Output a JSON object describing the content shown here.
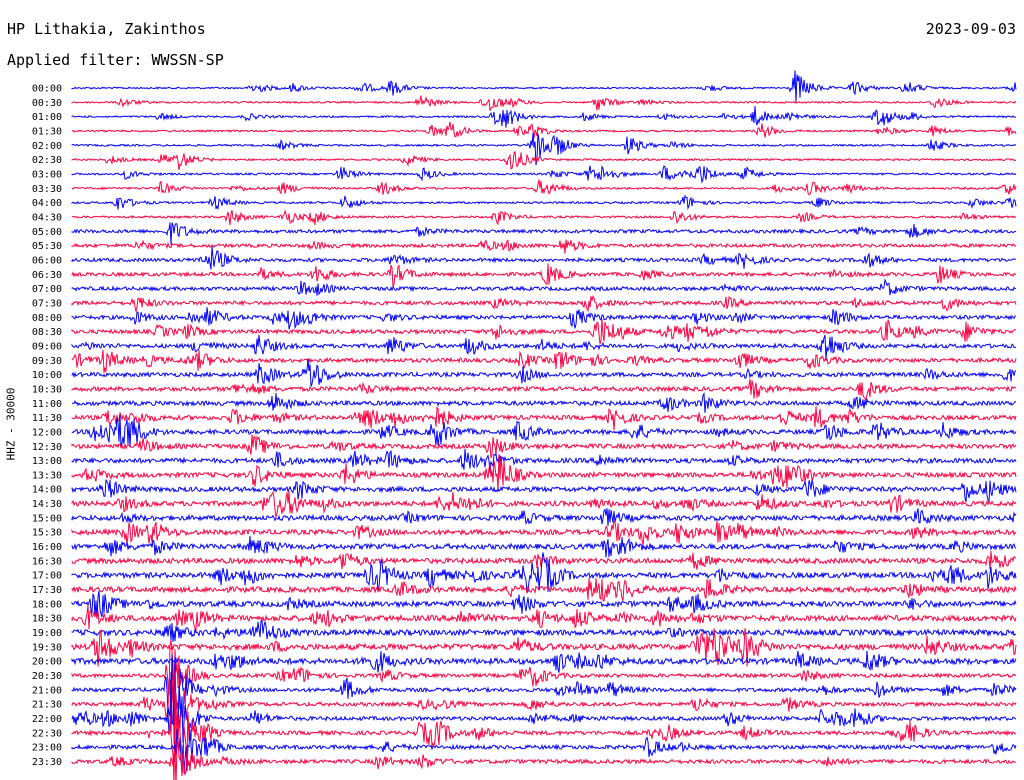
{
  "header": {
    "station": "HP Lithakia, Zakinthos",
    "date": "2023-09-03",
    "filter": "Applied filter: WWSSN-SP"
  },
  "chart_data": {
    "type": "line",
    "ylabel": "HHZ - 30000",
    "rows": [
      {
        "label": "00:00",
        "color": "#0000ff"
      },
      {
        "label": "00:30",
        "color": "#ff0040"
      },
      {
        "label": "01:00",
        "color": "#0000ff"
      },
      {
        "label": "01:30",
        "color": "#ff0040"
      },
      {
        "label": "02:00",
        "color": "#0000ff"
      },
      {
        "label": "02:30",
        "color": "#ff0040"
      },
      {
        "label": "03:00",
        "color": "#0000ff"
      },
      {
        "label": "03:30",
        "color": "#ff0040"
      },
      {
        "label": "04:00",
        "color": "#0000ff"
      },
      {
        "label": "04:30",
        "color": "#ff0040"
      },
      {
        "label": "05:00",
        "color": "#0000ff"
      },
      {
        "label": "05:30",
        "color": "#ff0040"
      },
      {
        "label": "06:00",
        "color": "#0000ff"
      },
      {
        "label": "06:30",
        "color": "#ff0040"
      },
      {
        "label": "07:00",
        "color": "#0000ff"
      },
      {
        "label": "07:30",
        "color": "#ff0040"
      },
      {
        "label": "08:00",
        "color": "#0000ff"
      },
      {
        "label": "08:30",
        "color": "#ff0040"
      },
      {
        "label": "09:00",
        "color": "#0000ff"
      },
      {
        "label": "09:30",
        "color": "#ff0040"
      },
      {
        "label": "10:00",
        "color": "#0000ff"
      },
      {
        "label": "10:30",
        "color": "#ff0040"
      },
      {
        "label": "11:00",
        "color": "#0000ff"
      },
      {
        "label": "11:30",
        "color": "#ff0040"
      },
      {
        "label": "12:00",
        "color": "#0000ff"
      },
      {
        "label": "12:30",
        "color": "#ff0040"
      },
      {
        "label": "13:00",
        "color": "#0000ff"
      },
      {
        "label": "13:30",
        "color": "#ff0040"
      },
      {
        "label": "14:00",
        "color": "#0000ff"
      },
      {
        "label": "14:30",
        "color": "#ff0040"
      },
      {
        "label": "15:00",
        "color": "#0000ff"
      },
      {
        "label": "15:30",
        "color": "#ff0040"
      },
      {
        "label": "16:00",
        "color": "#0000ff"
      },
      {
        "label": "16:30",
        "color": "#ff0040"
      },
      {
        "label": "17:00",
        "color": "#0000ff"
      },
      {
        "label": "17:30",
        "color": "#ff0040"
      },
      {
        "label": "18:00",
        "color": "#0000ff"
      },
      {
        "label": "18:30",
        "color": "#ff0040"
      },
      {
        "label": "19:00",
        "color": "#0000ff"
      },
      {
        "label": "19:30",
        "color": "#ff0040"
      },
      {
        "label": "20:00",
        "color": "#0000ff"
      },
      {
        "label": "20:30",
        "color": "#ff0040"
      },
      {
        "label": "21:00",
        "color": "#0000ff"
      },
      {
        "label": "21:30",
        "color": "#ff0040"
      },
      {
        "label": "22:00",
        "color": "#0000ff"
      },
      {
        "label": "22:30",
        "color": "#ff0040"
      },
      {
        "label": "23:00",
        "color": "#0000ff"
      },
      {
        "label": "23:30",
        "color": "#ff0040"
      }
    ]
  }
}
